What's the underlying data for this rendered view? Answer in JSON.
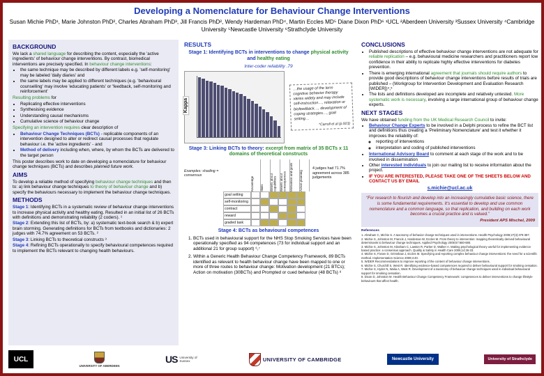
{
  "header": {
    "title": "Developing a Nomenclature for Behaviour Change Interventions",
    "authors": "Susan Michie PhD¹, Marie Johnston PhD², Charles Abraham PhD³, Jill Francis PhD², Wendy Hardeman PhD⁴, Martin Eccles MD⁵ Diane Dixon PhD⁶  ¹UCL  ²Aberdeen University  ³Sussex University  ⁴Cambridge University  ⁵Newcastle University  ⁶Strathclyde University"
  },
  "background": {
    "heading": "BACKGROUND",
    "intro": [
      {
        "t": "We lack a "
      },
      {
        "t": "shared language",
        "c": "green"
      },
      {
        "t": " for describing the content, especially the 'active ingredients' of behaviour change interventions. By contrast, biomedical interventions are precisely specified. In "
      },
      {
        "t": "behaviour change interventions",
        "c": "green"
      },
      {
        "t": ":"
      }
    ],
    "bullets": [
      "the same technique may be described by different labels e.g. 'self-monitoring' may be labeled 'daily diaries' and",
      "the same labels may be applied to different techniques (e.g. 'behavioural counselling' may involve 'educating patients' or 'feedback, self-monitoring and reinforcement'"
    ],
    "problems_lead": [
      {
        "t": "Resulting problems",
        "c": "green"
      },
      {
        "t": " for"
      }
    ],
    "problems": [
      "Replicating effective interventions",
      "Synthesising evidence",
      "Understanding causal mechanisms",
      "Cumulative science of behaviour change"
    ],
    "specify_lead": [
      {
        "t": "Specifying an intervention requires",
        "c": "green"
      },
      {
        "t": " clear description of"
      }
    ],
    "specify_bullets": [
      [
        {
          "t": "Behaviour Change Techniques (BCTs)",
          "c": "blue-bold"
        },
        {
          "t": " - replicable components of an intervention designed to alter or redirect causal processes that regulate behaviour i.e. the 'active ingredients' - and"
        }
      ],
      [
        {
          "t": "Method of delivery",
          "c": "blue-bold"
        },
        {
          "t": " including when, where, by whom the BCTs are delivered to the target person"
        }
      ]
    ],
    "outro": [
      {
        "t": "This poster describes work to date on developing a nomenclature for behaviour change techniques (BCTs) and describes "
      },
      {
        "t": "planned future work",
        "c": "italic"
      },
      {
        "t": "."
      }
    ]
  },
  "aims": {
    "heading": "AIMS",
    "body": [
      {
        "t": "To develop a reliable method of specifying "
      },
      {
        "t": "behaviour change techniques",
        "c": "green"
      },
      {
        "t": " and then to: a) link behaviour change techniques "
      },
      {
        "t": "to theory of behaviour change",
        "c": "green"
      },
      {
        "t": " and b) specify the behaviours necessary to implement the behaviour change techniques."
      }
    ]
  },
  "methods": {
    "heading": "METHODS",
    "stages": [
      {
        "label": "Stage 1",
        "text": ":  Identifying BCTs in a systematic review of behaviour change interventions to increase physical activity and healthy eating. Resulted in an initial list of 26 BCTs with definitions and demonstrating reliability (2 coders). ¹"
      },
      {
        "label": "Stage 2",
        "text": ":  Extending this list of BCTs, by: a) systematic text-book search & b) expert brain storming. Generating definitions for BCTs from textbooks and dictionaries: 2 judges with 74.7% agreement on 53 BCTs. ²"
      },
      {
        "label": "Stage 3",
        "text": ":  Linking BCTs to theoretical constructs ³"
      },
      {
        "label": "Stage 4",
        "text": ":  Refining BCTs operationally to specify behavioural competences required to implement the BCTs relevant to changing health behaviours."
      }
    ]
  },
  "results": {
    "heading": "RESULTS",
    "stage1_title": [
      {
        "t": "Stage 1:  Identifying BCTs in interventions to change ",
        "c": "blue"
      },
      {
        "t": "physical activity",
        "c": "green"
      },
      {
        "t": " and ",
        "c": "blue"
      },
      {
        "t": "healthy eating",
        "c": "green"
      }
    ],
    "stage1_caption": "Inter-coder reliability .79",
    "kappa_chart": {
      "type": "bar",
      "ylabel": "Kappa",
      "ylim": [
        0,
        1
      ],
      "values": [
        0.97,
        0.95,
        0.92,
        0.9,
        0.88,
        0.85,
        0.83,
        0.8,
        0.78,
        0.75,
        0.72,
        0.7,
        0.66,
        0.62,
        0.58,
        0.54,
        0.5,
        0.45,
        0.4,
        0.34,
        0.27,
        0.18
      ]
    },
    "quote": "…the usage of the term cognitive behavior therapy varies widely and may include self-instruction…, relaxation or biofeedback…, development of coping strategies…, goal setting…",
    "quote_source": "*Carroll et al (p.923)",
    "stage3_title": [
      {
        "t": "Stage 3:  Linking BCTs to theory: ",
        "c": "blue"
      },
      {
        "t": "excerpt from matrix of 35 BCTs x 11 domains of theoretical constructs",
        "c": "green"
      }
    ],
    "table": {
      "note": "Examples: shading = consensus",
      "col_headers": [
        "Knowledge",
        "Skills",
        "Beliefs about capabilities",
        "Beliefs about consequences",
        "Motivation and goals",
        "Action planning"
      ],
      "rows": [
        {
          "label": "goal setting",
          "cells": [
            0,
            0,
            1,
            1,
            1,
            1
          ]
        },
        {
          "label": "self-monitoring",
          "cells": [
            0,
            1,
            0,
            0,
            1,
            1
          ]
        },
        {
          "label": "contract",
          "cells": [
            0,
            0,
            1,
            0,
            1,
            0
          ]
        },
        {
          "label": "reward",
          "cells": [
            0,
            0,
            0,
            1,
            1,
            0
          ]
        },
        {
          "label": "graded task",
          "cells": [
            0,
            1,
            1,
            0,
            1,
            1
          ]
        }
      ],
      "agreement_note": "4 judges had 71.7% agreement across 385 judgements"
    },
    "stage4_title": "Stage 4:  BCTs as behavioural competences",
    "stage4_items": [
      "BCTs used in behavioural support for the NHS Stop Smoking Services have been operationally specified as 94 competences (73 for individual support and an additional 21 for group support) ⁶,⁷",
      "Within a Generic Health Behaviour Change Competency Framework, 89 BCTs identified as relevant to health behaviour change have been mapped to one or more of three routes to behaviour change: Motivation development (21 BTCs); Action on motivation (30BCTs) and Prompted or cued behaviour (48 BCTs) ⁸"
    ]
  },
  "conclusions": {
    "heading": "CONCLUSIONS",
    "bullets": [
      [
        {
          "t": "Published descriptions of effective behaviour change interventions are not adequate for "
        },
        {
          "t": "reliable replication",
          "c": "green"
        },
        {
          "t": " – e.g. behavioural medicine researchers and practitioners report low confidence in their ability to replicate highly effective interventions for diabetes prevention."
        }
      ],
      [
        {
          "t": "There is emerging international "
        },
        {
          "t": "agreement that journals should require authors",
          "c": "green"
        },
        {
          "t": " to provide good descriptions of behaviour change interventions before results of trials are published – (Workgroup for Intervention Development and Evaluation Research [WIDER])⁴,⁵"
        }
      ],
      [
        {
          "t": "The lists and definitions developed are incomplete and relatively untested.  "
        },
        {
          "t": "More systematic work is necessary",
          "c": "green"
        },
        {
          "t": ", involving a large international group of behaviour change experts."
        }
      ]
    ]
  },
  "next_stages": {
    "heading": "NEXT STAGES",
    "lead": [
      {
        "t": "We have obtained "
      },
      {
        "t": "funding from the UK Medical Research Council",
        "c": "green"
      },
      {
        "t": " to invite:"
      }
    ],
    "bullets": [
      [
        {
          "t": "Behaviour Change Experts",
          "c": "blue-underline"
        },
        {
          "t": " to be involved in a Delphi process to refine the BCT list and definitions thus creating a 'Preliminary Nomenclature' and test it whether it improves the reliability of:"
        }
      ],
      [
        {
          "t": "International Advisory Board",
          "c": "blue-underline"
        },
        {
          "t": " to comment at each stage of the work and to be involved in dissemination"
        }
      ],
      [
        {
          "t": "Other "
        },
        {
          "t": "interested individuals",
          "c": "blue-underline"
        },
        {
          "t": " to join our mailing list to receive information about the project."
        }
      ],
      [
        {
          "t": "IF YOU ARE INTERESTED, PLEASE TAKE ONE OF THE SHEETS BELOW AND CONTACT US BY EMAIL",
          "c": "red-bold"
        }
      ]
    ],
    "sub_bullets": [
      "reporting of interventions",
      "interpretation and coding of published interventions"
    ],
    "email": "s.michie@ucl.ac.uk"
  },
  "quote_box": {
    "text": "“For research to flourish and develop into an increasingly cumulative basic science, there is some fundamental requirements. It’s essential to develop and use common nomenclature and a common language, so that replication, and building on each work becomes a crucial practice and is valued.”",
    "attribution": "President APS Mischel, 2009"
  },
  "references": {
    "heading": "References",
    "items": [
      "1.  Abraham C, Michie S. A taxonomy of behavior change techniques used in interventions. Health Psychology 2008;27(3):379-387.",
      "2.  Michie S, Johnston M, Francis J, Hardeman W, Eccles M. From theory to intervention: mapping theoretically derived behavioural determinants to behaviour change techniques. Applied Psychology 2008;57:660-680.",
      "3.  Michie S, Johnston M, Abraham C, Lawton R, Parker D, Walker A. Making psychological theory useful for implementing evidence based practice: a consensus approach. Quality & Safety in Health Care 2005;14:26-33.",
      "4.  Michie S, Fixsen D, Grimshaw J, Eccles M. Specifying and reporting complex behaviour change interventions: the need for a scientific method. Implementation Science 2009;4:40.",
      "5.  WIDER Recommendations to improve reporting of the content of behaviour change interventions.",
      "6.  Michie S, Churchill S, West R. Identifying evidence-based competences required to deliver behavioural support for smoking cessation.",
      "7.  Michie S, Hyder N, Walia A, West R. Development of a taxonomy of behaviour change techniques used in individual behavioural support for smoking cessation.",
      "8.  Dixon D, Johnston M. Health Behaviour Change Competency Framework: competences to deliver interventions to change lifestyle behaviours that affect health."
    ]
  },
  "logos": [
    {
      "name": "ucl",
      "label": "UCL"
    },
    {
      "name": "aberdeen",
      "label": "UNIVERSITY OF ABERDEEN"
    },
    {
      "name": "sussex",
      "label": "US",
      "sub": "University of Sussex"
    },
    {
      "name": "cambridge",
      "label": "UNIVERSITY OF CAMBRIDGE"
    },
    {
      "name": "newcastle",
      "label": "Newcastle University"
    },
    {
      "name": "strathclyde",
      "label": "University of Strathclyde"
    }
  ]
}
